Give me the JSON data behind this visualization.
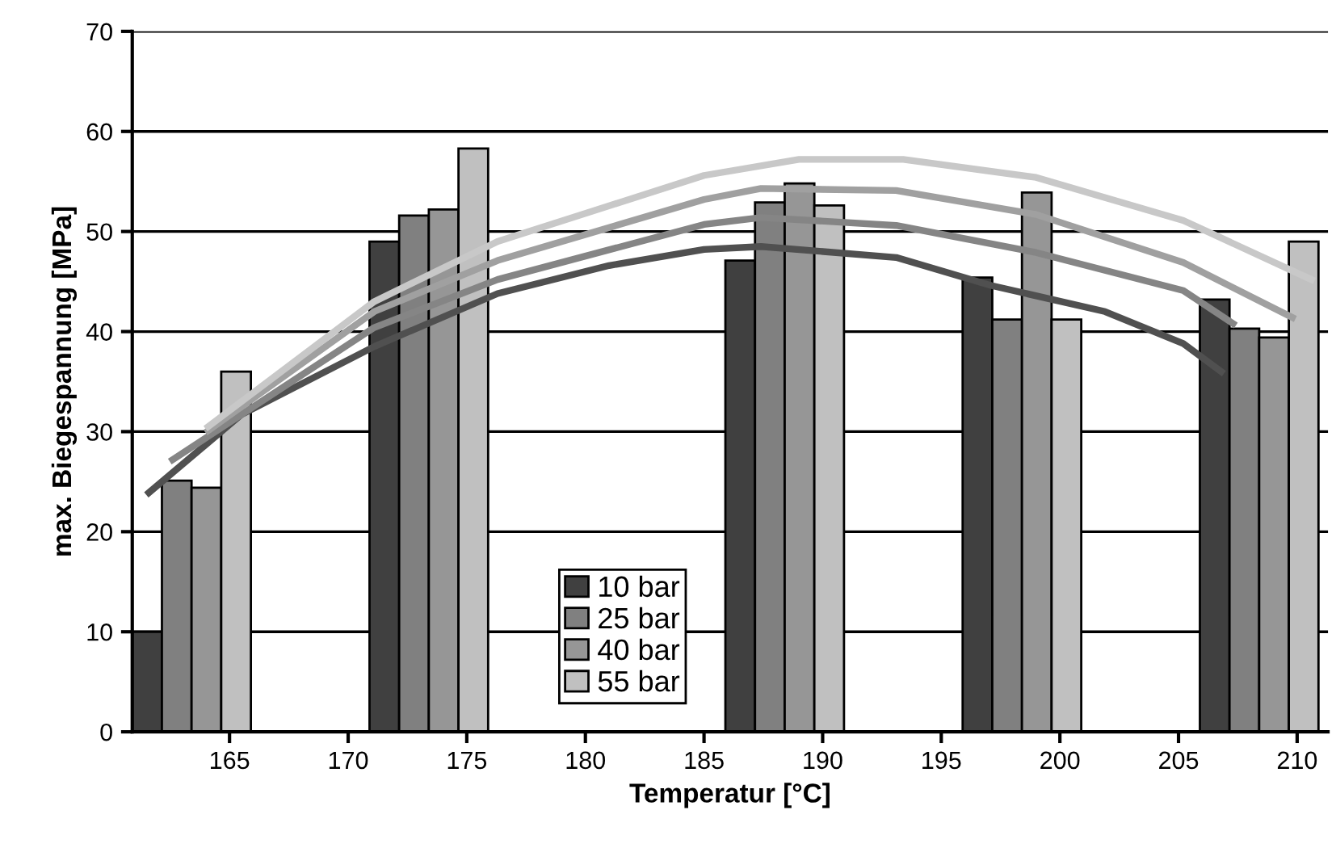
{
  "chart_data": {
    "type": "bar",
    "xlabel": "Temperatur [°C]",
    "ylabel": "max. Biegespannung [MPa]",
    "x": [
      165,
      175,
      190,
      200,
      210
    ],
    "series": [
      {
        "name": "10 bar",
        "color": "#404040",
        "values": [
          10,
          49.0,
          47.1,
          45.4,
          43.2
        ]
      },
      {
        "name": "25 bar",
        "color": "#808080",
        "values": [
          25.1,
          51.6,
          52.9,
          41.2,
          40.3
        ]
      },
      {
        "name": "40 bar",
        "color": "#969696",
        "values": [
          24.4,
          52.2,
          54.8,
          53.9,
          39.4
        ]
      },
      {
        "name": "55 bar",
        "color": "#c0c0c0",
        "values": [
          36.0,
          58.3,
          52.6,
          41.2,
          49.0
        ]
      },
      {
        "type": "line",
        "color": "#505050",
        "x": [
          161.6,
          165.5,
          171.1,
          176.3,
          181.0,
          185.0,
          187.4,
          193.1,
          197.1,
          201.9,
          205.2,
          206.8
        ],
        "values": [
          23.9,
          31.7,
          38.5,
          43.8,
          46.6,
          48.2,
          48.5,
          47.4,
          44.6,
          42.0,
          38.8,
          36.0
        ]
      },
      {
        "type": "line",
        "color": "#858585",
        "x": [
          162.6,
          171.1,
          176.3,
          185.0,
          187.4,
          193.1,
          199.0,
          205.2,
          207.3
        ],
        "values": [
          27.2,
          40.4,
          45.2,
          50.7,
          51.4,
          50.6,
          47.9,
          44.1,
          40.8
        ]
      },
      {
        "type": "line",
        "color": "#a0a0a0",
        "x": [
          164.1,
          171.1,
          176.3,
          185.0,
          187.4,
          193.1,
          199.0,
          205.2,
          209.8
        ],
        "values": [
          30.1,
          42.0,
          47.1,
          53.2,
          54.3,
          54.1,
          51.7,
          46.9,
          41.4
        ]
      },
      {
        "type": "line",
        "color": "#c8c8c8",
        "x": [
          164.1,
          171.1,
          176.3,
          185.0,
          189.0,
          193.4,
          199.0,
          205.2,
          210.6
        ],
        "values": [
          30.5,
          43.0,
          49.0,
          55.6,
          57.2,
          57.2,
          55.4,
          51.1,
          45.2
        ]
      }
    ],
    "xlim": [
      160.9,
      211.3
    ],
    "xticks": [
      165,
      170,
      175,
      180,
      185,
      190,
      195,
      200,
      205,
      210
    ],
    "ylim": [
      0,
      70
    ],
    "yticks": [
      0,
      10,
      20,
      30,
      40,
      50,
      60,
      70
    ],
    "grid": "y",
    "legend": "bottom",
    "line_style": "solid",
    "marker": "none"
  }
}
